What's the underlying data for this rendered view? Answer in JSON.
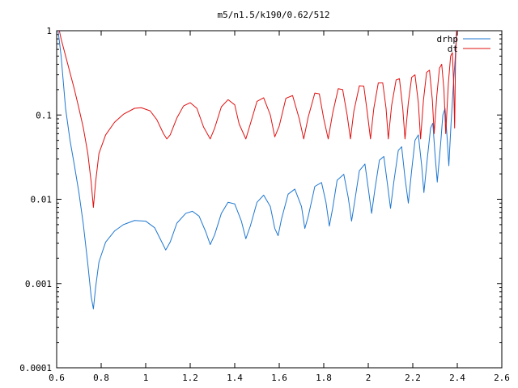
{
  "chart_data": {
    "type": "line",
    "title": "m5/n1.5/k190/0.62/512",
    "xlabel": "",
    "ylabel": "",
    "xlim": [
      0.6,
      2.6
    ],
    "ylim": [
      0.0001,
      1
    ],
    "yscale": "log",
    "grid": false,
    "legend_position": "top-right",
    "x_tick_labels": [
      "0.6",
      "0.8",
      "1",
      "1.2",
      "1.4",
      "1.6",
      "1.8",
      "2",
      "2.2",
      "2.4",
      "2.6"
    ],
    "x_tick_values": [
      0.6,
      0.8,
      1.0,
      1.2,
      1.4,
      1.6,
      1.8,
      2.0,
      2.2,
      2.4,
      2.6
    ],
    "y_tick_labels": [
      "0.0001",
      "0.001",
      "0.01",
      "0.1",
      "1"
    ],
    "y_tick_values": [
      0.0001,
      0.001,
      0.01,
      0.1,
      1
    ],
    "series": [
      {
        "name": "drhp",
        "color": "#1f77d0",
        "points": [
          [
            0.6,
            1.4
          ],
          [
            0.62,
            0.5
          ],
          [
            0.64,
            0.12
          ],
          [
            0.66,
            0.05
          ],
          [
            0.68,
            0.025
          ],
          [
            0.7,
            0.012
          ],
          [
            0.72,
            0.005
          ],
          [
            0.74,
            0.0017
          ],
          [
            0.755,
            0.0007
          ],
          [
            0.765,
            0.0005
          ],
          [
            0.775,
            0.0009
          ],
          [
            0.79,
            0.0018
          ],
          [
            0.82,
            0.0031
          ],
          [
            0.86,
            0.0042
          ],
          [
            0.9,
            0.005
          ],
          [
            0.95,
            0.0056
          ],
          [
            1.0,
            0.0055
          ],
          [
            1.04,
            0.0046
          ],
          [
            1.07,
            0.0032
          ],
          [
            1.09,
            0.0025
          ],
          [
            1.11,
            0.0031
          ],
          [
            1.14,
            0.0052
          ],
          [
            1.18,
            0.0068
          ],
          [
            1.21,
            0.0072
          ],
          [
            1.24,
            0.0063
          ],
          [
            1.27,
            0.0041
          ],
          [
            1.29,
            0.0029
          ],
          [
            1.31,
            0.0038
          ],
          [
            1.34,
            0.0068
          ],
          [
            1.37,
            0.0092
          ],
          [
            1.4,
            0.0088
          ],
          [
            1.43,
            0.0055
          ],
          [
            1.45,
            0.0034
          ],
          [
            1.47,
            0.0048
          ],
          [
            1.5,
            0.0092
          ],
          [
            1.53,
            0.0112
          ],
          [
            1.56,
            0.0082
          ],
          [
            1.58,
            0.0045
          ],
          [
            1.595,
            0.0037
          ],
          [
            1.61,
            0.0058
          ],
          [
            1.64,
            0.0115
          ],
          [
            1.67,
            0.0132
          ],
          [
            1.7,
            0.0082
          ],
          [
            1.715,
            0.0045
          ],
          [
            1.73,
            0.0062
          ],
          [
            1.76,
            0.0142
          ],
          [
            1.79,
            0.0158
          ],
          [
            1.81,
            0.0092
          ],
          [
            1.825,
            0.0048
          ],
          [
            1.84,
            0.0078
          ],
          [
            1.86,
            0.0168
          ],
          [
            1.89,
            0.0198
          ],
          [
            1.91,
            0.0105
          ],
          [
            1.925,
            0.0055
          ],
          [
            1.94,
            0.0098
          ],
          [
            1.96,
            0.0218
          ],
          [
            1.985,
            0.0262
          ],
          [
            2.0,
            0.0135
          ],
          [
            2.015,
            0.0068
          ],
          [
            2.03,
            0.0132
          ],
          [
            2.05,
            0.029
          ],
          [
            2.07,
            0.0322
          ],
          [
            2.085,
            0.016
          ],
          [
            2.1,
            0.0078
          ],
          [
            2.115,
            0.0162
          ],
          [
            2.135,
            0.038
          ],
          [
            2.15,
            0.042
          ],
          [
            2.165,
            0.018
          ],
          [
            2.18,
            0.009
          ],
          [
            2.195,
            0.022
          ],
          [
            2.21,
            0.05
          ],
          [
            2.225,
            0.058
          ],
          [
            2.24,
            0.025
          ],
          [
            2.25,
            0.012
          ],
          [
            2.265,
            0.03
          ],
          [
            2.28,
            0.07
          ],
          [
            2.29,
            0.08
          ],
          [
            2.3,
            0.034
          ],
          [
            2.31,
            0.016
          ],
          [
            2.325,
            0.045
          ],
          [
            2.335,
            0.1
          ],
          [
            2.345,
            0.12
          ],
          [
            2.355,
            0.05
          ],
          [
            2.362,
            0.025
          ],
          [
            2.372,
            0.08
          ],
          [
            2.382,
            0.22
          ],
          [
            2.39,
            0.45
          ],
          [
            2.396,
            0.9
          ],
          [
            2.4,
            1.4
          ]
        ]
      },
      {
        "name": "dt",
        "color": "#e01010",
        "points": [
          [
            0.6,
            1.4
          ],
          [
            0.62,
            0.8
          ],
          [
            0.65,
            0.4
          ],
          [
            0.68,
            0.2
          ],
          [
            0.7,
            0.12
          ],
          [
            0.72,
            0.07
          ],
          [
            0.74,
            0.035
          ],
          [
            0.755,
            0.016
          ],
          [
            0.765,
            0.008
          ],
          [
            0.775,
            0.016
          ],
          [
            0.79,
            0.035
          ],
          [
            0.82,
            0.058
          ],
          [
            0.86,
            0.082
          ],
          [
            0.9,
            0.102
          ],
          [
            0.95,
            0.12
          ],
          [
            0.98,
            0.122
          ],
          [
            1.02,
            0.112
          ],
          [
            1.05,
            0.088
          ],
          [
            1.08,
            0.06
          ],
          [
            1.095,
            0.052
          ],
          [
            1.11,
            0.058
          ],
          [
            1.14,
            0.092
          ],
          [
            1.17,
            0.128
          ],
          [
            1.2,
            0.14
          ],
          [
            1.23,
            0.12
          ],
          [
            1.26,
            0.072
          ],
          [
            1.29,
            0.052
          ],
          [
            1.31,
            0.07
          ],
          [
            1.34,
            0.125
          ],
          [
            1.37,
            0.152
          ],
          [
            1.4,
            0.132
          ],
          [
            1.42,
            0.078
          ],
          [
            1.45,
            0.052
          ],
          [
            1.47,
            0.078
          ],
          [
            1.5,
            0.145
          ],
          [
            1.53,
            0.16
          ],
          [
            1.56,
            0.1
          ],
          [
            1.58,
            0.055
          ],
          [
            1.6,
            0.074
          ],
          [
            1.63,
            0.158
          ],
          [
            1.66,
            0.17
          ],
          [
            1.69,
            0.09
          ],
          [
            1.71,
            0.052
          ],
          [
            1.73,
            0.094
          ],
          [
            1.76,
            0.182
          ],
          [
            1.78,
            0.178
          ],
          [
            1.8,
            0.09
          ],
          [
            1.82,
            0.052
          ],
          [
            1.84,
            0.105
          ],
          [
            1.865,
            0.205
          ],
          [
            1.885,
            0.2
          ],
          [
            1.905,
            0.1
          ],
          [
            1.92,
            0.052
          ],
          [
            1.935,
            0.11
          ],
          [
            1.96,
            0.222
          ],
          [
            1.98,
            0.22
          ],
          [
            1.995,
            0.11
          ],
          [
            2.01,
            0.052
          ],
          [
            2.025,
            0.12
          ],
          [
            2.045,
            0.24
          ],
          [
            2.065,
            0.24
          ],
          [
            2.08,
            0.12
          ],
          [
            2.09,
            0.052
          ],
          [
            2.105,
            0.13
          ],
          [
            2.125,
            0.26
          ],
          [
            2.14,
            0.27
          ],
          [
            2.155,
            0.12
          ],
          [
            2.165,
            0.052
          ],
          [
            2.18,
            0.14
          ],
          [
            2.195,
            0.28
          ],
          [
            2.21,
            0.3
          ],
          [
            2.225,
            0.14
          ],
          [
            2.235,
            0.052
          ],
          [
            2.248,
            0.15
          ],
          [
            2.262,
            0.32
          ],
          [
            2.275,
            0.34
          ],
          [
            2.288,
            0.15
          ],
          [
            2.296,
            0.06
          ],
          [
            2.308,
            0.17
          ],
          [
            2.32,
            0.36
          ],
          [
            2.33,
            0.4
          ],
          [
            2.34,
            0.2
          ],
          [
            2.348,
            0.06
          ],
          [
            2.36,
            0.24
          ],
          [
            2.37,
            0.5
          ],
          [
            2.378,
            0.55
          ],
          [
            2.384,
            0.22
          ],
          [
            2.388,
            0.07
          ],
          [
            2.392,
            0.45
          ],
          [
            2.397,
            1.0
          ],
          [
            2.4,
            1.4
          ]
        ]
      }
    ]
  }
}
